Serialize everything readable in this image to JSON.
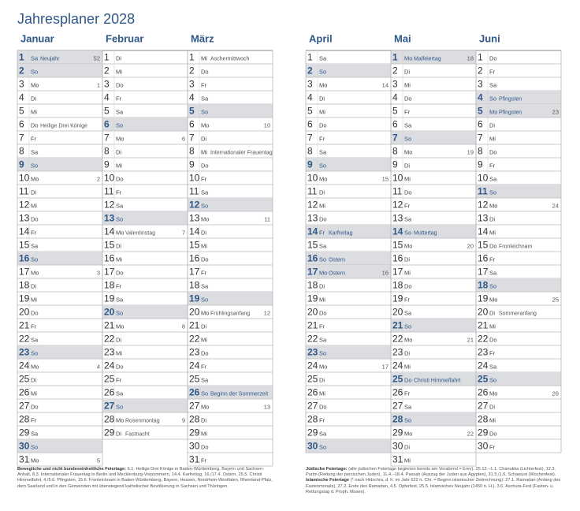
{
  "header": {
    "title": "Jahresplaner 2028"
  },
  "months": [
    {
      "name": "Januar",
      "days": [
        {
          "d": 1,
          "wd": "Sa",
          "note": "Neujahr",
          "kw": 52,
          "holiday": true
        },
        {
          "d": 2,
          "wd": "So"
        },
        {
          "d": 3,
          "wd": "Mo",
          "kw": 1
        },
        {
          "d": 4,
          "wd": "Di"
        },
        {
          "d": 5,
          "wd": "Mi"
        },
        {
          "d": 6,
          "wd": "Do",
          "note": "Heilige Drei Könige"
        },
        {
          "d": 7,
          "wd": "Fr"
        },
        {
          "d": 8,
          "wd": "Sa"
        },
        {
          "d": 9,
          "wd": "So"
        },
        {
          "d": 10,
          "wd": "Mo",
          "kw": 2
        },
        {
          "d": 11,
          "wd": "Di"
        },
        {
          "d": 12,
          "wd": "Mi"
        },
        {
          "d": 13,
          "wd": "Do"
        },
        {
          "d": 14,
          "wd": "Fr"
        },
        {
          "d": 15,
          "wd": "Sa"
        },
        {
          "d": 16,
          "wd": "So"
        },
        {
          "d": 17,
          "wd": "Mo",
          "kw": 3
        },
        {
          "d": 18,
          "wd": "Di"
        },
        {
          "d": 19,
          "wd": "Mi"
        },
        {
          "d": 20,
          "wd": "Do"
        },
        {
          "d": 21,
          "wd": "Fr"
        },
        {
          "d": 22,
          "wd": "Sa"
        },
        {
          "d": 23,
          "wd": "So"
        },
        {
          "d": 24,
          "wd": "Mo",
          "kw": 4
        },
        {
          "d": 25,
          "wd": "Di"
        },
        {
          "d": 26,
          "wd": "Mi"
        },
        {
          "d": 27,
          "wd": "Do"
        },
        {
          "d": 28,
          "wd": "Fr"
        },
        {
          "d": 29,
          "wd": "Sa"
        },
        {
          "d": 30,
          "wd": "So"
        },
        {
          "d": 31,
          "wd": "Mo",
          "kw": 5
        }
      ]
    },
    {
      "name": "Februar",
      "days": [
        {
          "d": 1,
          "wd": "Di"
        },
        {
          "d": 2,
          "wd": "Mi"
        },
        {
          "d": 3,
          "wd": "Do"
        },
        {
          "d": 4,
          "wd": "Fr"
        },
        {
          "d": 5,
          "wd": "Sa"
        },
        {
          "d": 6,
          "wd": "So"
        },
        {
          "d": 7,
          "wd": "Mo",
          "kw": 6
        },
        {
          "d": 8,
          "wd": "Di"
        },
        {
          "d": 9,
          "wd": "Mi"
        },
        {
          "d": 10,
          "wd": "Do"
        },
        {
          "d": 11,
          "wd": "Fr"
        },
        {
          "d": 12,
          "wd": "Sa"
        },
        {
          "d": 13,
          "wd": "So"
        },
        {
          "d": 14,
          "wd": "Mo",
          "note": "Valentinstag",
          "kw": 7
        },
        {
          "d": 15,
          "wd": "Di"
        },
        {
          "d": 16,
          "wd": "Mi"
        },
        {
          "d": 17,
          "wd": "Do"
        },
        {
          "d": 18,
          "wd": "Fr"
        },
        {
          "d": 19,
          "wd": "Sa"
        },
        {
          "d": 20,
          "wd": "So"
        },
        {
          "d": 21,
          "wd": "Mo",
          "kw": 8
        },
        {
          "d": 22,
          "wd": "Di"
        },
        {
          "d": 23,
          "wd": "Mi"
        },
        {
          "d": 24,
          "wd": "Do"
        },
        {
          "d": 25,
          "wd": "Fr"
        },
        {
          "d": 26,
          "wd": "Sa"
        },
        {
          "d": 27,
          "wd": "So"
        },
        {
          "d": 28,
          "wd": "Mo",
          "note": "Rosenmontag",
          "kw": 9
        },
        {
          "d": 29,
          "wd": "Di",
          "note": "Fastnacht"
        }
      ]
    },
    {
      "name": "März",
      "days": [
        {
          "d": 1,
          "wd": "Mi",
          "note": "Aschermittwoch"
        },
        {
          "d": 2,
          "wd": "Do"
        },
        {
          "d": 3,
          "wd": "Fr"
        },
        {
          "d": 4,
          "wd": "Sa"
        },
        {
          "d": 5,
          "wd": "So"
        },
        {
          "d": 6,
          "wd": "Mo",
          "kw": 10
        },
        {
          "d": 7,
          "wd": "Di"
        },
        {
          "d": 8,
          "wd": "Mi",
          "note": "Internationaler Frauentag"
        },
        {
          "d": 9,
          "wd": "Do"
        },
        {
          "d": 10,
          "wd": "Fr"
        },
        {
          "d": 11,
          "wd": "Sa"
        },
        {
          "d": 12,
          "wd": "So"
        },
        {
          "d": 13,
          "wd": "Mo",
          "kw": 11
        },
        {
          "d": 14,
          "wd": "Di"
        },
        {
          "d": 15,
          "wd": "Mi"
        },
        {
          "d": 16,
          "wd": "Do"
        },
        {
          "d": 17,
          "wd": "Fr"
        },
        {
          "d": 18,
          "wd": "Sa"
        },
        {
          "d": 19,
          "wd": "So"
        },
        {
          "d": 20,
          "wd": "Mo",
          "note": "Frühlingsanfang",
          "kw": 12
        },
        {
          "d": 21,
          "wd": "Di"
        },
        {
          "d": 22,
          "wd": "Mi"
        },
        {
          "d": 23,
          "wd": "Do"
        },
        {
          "d": 24,
          "wd": "Fr"
        },
        {
          "d": 25,
          "wd": "Sa"
        },
        {
          "d": 26,
          "wd": "So",
          "note": "Beginn der Sommerzeit"
        },
        {
          "d": 27,
          "wd": "Mo",
          "kw": 13
        },
        {
          "d": 28,
          "wd": "Di"
        },
        {
          "d": 29,
          "wd": "Mi"
        },
        {
          "d": 30,
          "wd": "Do"
        },
        {
          "d": 31,
          "wd": "Fr"
        }
      ]
    },
    {
      "name": "April",
      "days": [
        {
          "d": 1,
          "wd": "Sa"
        },
        {
          "d": 2,
          "wd": "So"
        },
        {
          "d": 3,
          "wd": "Mo",
          "kw": 14
        },
        {
          "d": 4,
          "wd": "Di"
        },
        {
          "d": 5,
          "wd": "Mi"
        },
        {
          "d": 6,
          "wd": "Do"
        },
        {
          "d": 7,
          "wd": "Fr"
        },
        {
          "d": 8,
          "wd": "Sa"
        },
        {
          "d": 9,
          "wd": "So"
        },
        {
          "d": 10,
          "wd": "Mo",
          "kw": 15
        },
        {
          "d": 11,
          "wd": "Di"
        },
        {
          "d": 12,
          "wd": "Mi"
        },
        {
          "d": 13,
          "wd": "Do"
        },
        {
          "d": 14,
          "wd": "Fr",
          "note": "Karfreitag",
          "holiday": true
        },
        {
          "d": 15,
          "wd": "Sa"
        },
        {
          "d": 16,
          "wd": "So",
          "note": "Ostern"
        },
        {
          "d": 17,
          "wd": "Mo",
          "note": "Ostern",
          "kw": 16,
          "holiday": true
        },
        {
          "d": 18,
          "wd": "Di"
        },
        {
          "d": 19,
          "wd": "Mi"
        },
        {
          "d": 20,
          "wd": "Do"
        },
        {
          "d": 21,
          "wd": "Fr"
        },
        {
          "d": 22,
          "wd": "Sa"
        },
        {
          "d": 23,
          "wd": "So"
        },
        {
          "d": 24,
          "wd": "Mo",
          "kw": 17
        },
        {
          "d": 25,
          "wd": "Di"
        },
        {
          "d": 26,
          "wd": "Mi"
        },
        {
          "d": 27,
          "wd": "Do"
        },
        {
          "d": 28,
          "wd": "Fr"
        },
        {
          "d": 29,
          "wd": "Sa"
        },
        {
          "d": 30,
          "wd": "So"
        }
      ]
    },
    {
      "name": "Mai",
      "days": [
        {
          "d": 1,
          "wd": "Mo",
          "note": "Maifeiertag",
          "kw": 18,
          "holiday": true
        },
        {
          "d": 2,
          "wd": "Di"
        },
        {
          "d": 3,
          "wd": "Mi"
        },
        {
          "d": 4,
          "wd": "Do"
        },
        {
          "d": 5,
          "wd": "Fr"
        },
        {
          "d": 6,
          "wd": "Sa"
        },
        {
          "d": 7,
          "wd": "So"
        },
        {
          "d": 8,
          "wd": "Mo",
          "kw": 19
        },
        {
          "d": 9,
          "wd": "Di"
        },
        {
          "d": 10,
          "wd": "Mi"
        },
        {
          "d": 11,
          "wd": "Do"
        },
        {
          "d": 12,
          "wd": "Fr"
        },
        {
          "d": 13,
          "wd": "Sa"
        },
        {
          "d": 14,
          "wd": "So",
          "note": "Muttertag"
        },
        {
          "d": 15,
          "wd": "Mo",
          "kw": 20
        },
        {
          "d": 16,
          "wd": "Di"
        },
        {
          "d": 17,
          "wd": "Mi"
        },
        {
          "d": 18,
          "wd": "Do"
        },
        {
          "d": 19,
          "wd": "Fr"
        },
        {
          "d": 20,
          "wd": "Sa"
        },
        {
          "d": 21,
          "wd": "So"
        },
        {
          "d": 22,
          "wd": "Mo",
          "kw": 21
        },
        {
          "d": 23,
          "wd": "Di"
        },
        {
          "d": 24,
          "wd": "Mi"
        },
        {
          "d": 25,
          "wd": "Do",
          "note": "Christi Himmelfahrt",
          "holiday": true
        },
        {
          "d": 26,
          "wd": "Fr"
        },
        {
          "d": 27,
          "wd": "Sa"
        },
        {
          "d": 28,
          "wd": "So"
        },
        {
          "d": 29,
          "wd": "Mo",
          "kw": 22
        },
        {
          "d": 30,
          "wd": "Di"
        },
        {
          "d": 31,
          "wd": "Mi"
        }
      ]
    },
    {
      "name": "Juni",
      "days": [
        {
          "d": 1,
          "wd": "Do"
        },
        {
          "d": 2,
          "wd": "Fr"
        },
        {
          "d": 3,
          "wd": "Sa"
        },
        {
          "d": 4,
          "wd": "So",
          "note": "Pfingsten"
        },
        {
          "d": 5,
          "wd": "Mo",
          "note": "Pfingsten",
          "kw": 23,
          "holiday": true
        },
        {
          "d": 6,
          "wd": "Di"
        },
        {
          "d": 7,
          "wd": "Mi"
        },
        {
          "d": 8,
          "wd": "Do"
        },
        {
          "d": 9,
          "wd": "Fr"
        },
        {
          "d": 10,
          "wd": "Sa"
        },
        {
          "d": 11,
          "wd": "So"
        },
        {
          "d": 12,
          "wd": "Mo",
          "kw": 24
        },
        {
          "d": 13,
          "wd": "Di"
        },
        {
          "d": 14,
          "wd": "Mi"
        },
        {
          "d": 15,
          "wd": "Do",
          "note": "Fronleichnam"
        },
        {
          "d": 16,
          "wd": "Fr"
        },
        {
          "d": 17,
          "wd": "Sa"
        },
        {
          "d": 18,
          "wd": "So"
        },
        {
          "d": 19,
          "wd": "Mo",
          "kw": 25
        },
        {
          "d": 20,
          "wd": "Di",
          "note": "Sommeranfang"
        },
        {
          "d": 21,
          "wd": "Mi"
        },
        {
          "d": 22,
          "wd": "Do"
        },
        {
          "d": 23,
          "wd": "Fr"
        },
        {
          "d": 24,
          "wd": "Sa"
        },
        {
          "d": 25,
          "wd": "So"
        },
        {
          "d": 26,
          "wd": "Mo",
          "kw": 26
        },
        {
          "d": 27,
          "wd": "Di"
        },
        {
          "d": 28,
          "wd": "Mi"
        },
        {
          "d": 29,
          "wd": "Do"
        },
        {
          "d": 30,
          "wd": "Fr"
        }
      ]
    }
  ],
  "footnotes": {
    "left": [
      {
        "label": "Bewegliche und nicht bundeseinheitliche Feiertage:",
        "text": "6.1. Heilige Drei Könige in Baden-Württemberg, Bayern und Sachsen-Anhalt, 8.3. Internationaler Frauentag in Berlin und Mecklenburg-Vorpommern, 14.4. Karfreitag, 16./17.4. Ostern, 25.5. Christi Himmelfahrt, 4./5.6. Pfingsten, 15.6. Fronleichnam in Baden-Württemberg, Bayern, Hessen, Nordrhein-Westfalen, Rheinland-Pfalz, dem Saarland und in den Gemeinden mit überwiegend katholischer Bevölkerung in Sachsen und Thüringen."
      }
    ],
    "right": [
      {
        "label": "Jüdische Feiertage:",
        "text": "(alle jüdischen Feiertage beginnen bereits am Vorabend = Erev). 25.12.–1.1. Chanukka (Lichterfest), 12.3. Purim (Rettung der persischen Juden), 11.4.–18.4. Passah (Auszug der Juden aus Ägypten), 31.5./1.6. Schawuot (Wochenfest)."
      },
      {
        "label": "Islamische Feiertage",
        "text": "(* nach Hidschra, d. h. im Jahr 622 n. Chr. = Beginn islamischer Zeitrechnung): 27.1. Ramadan (Anfang des Fastenmonats), 27.2. Ende des Ramadan, 4.5. Opferfest, 25.5. Islamisches Neujahr (1450 n. H.), 3.6. Aschura-Fest (Fasten- u. Rettungstag d. Proph. Moses)."
      }
    ]
  }
}
